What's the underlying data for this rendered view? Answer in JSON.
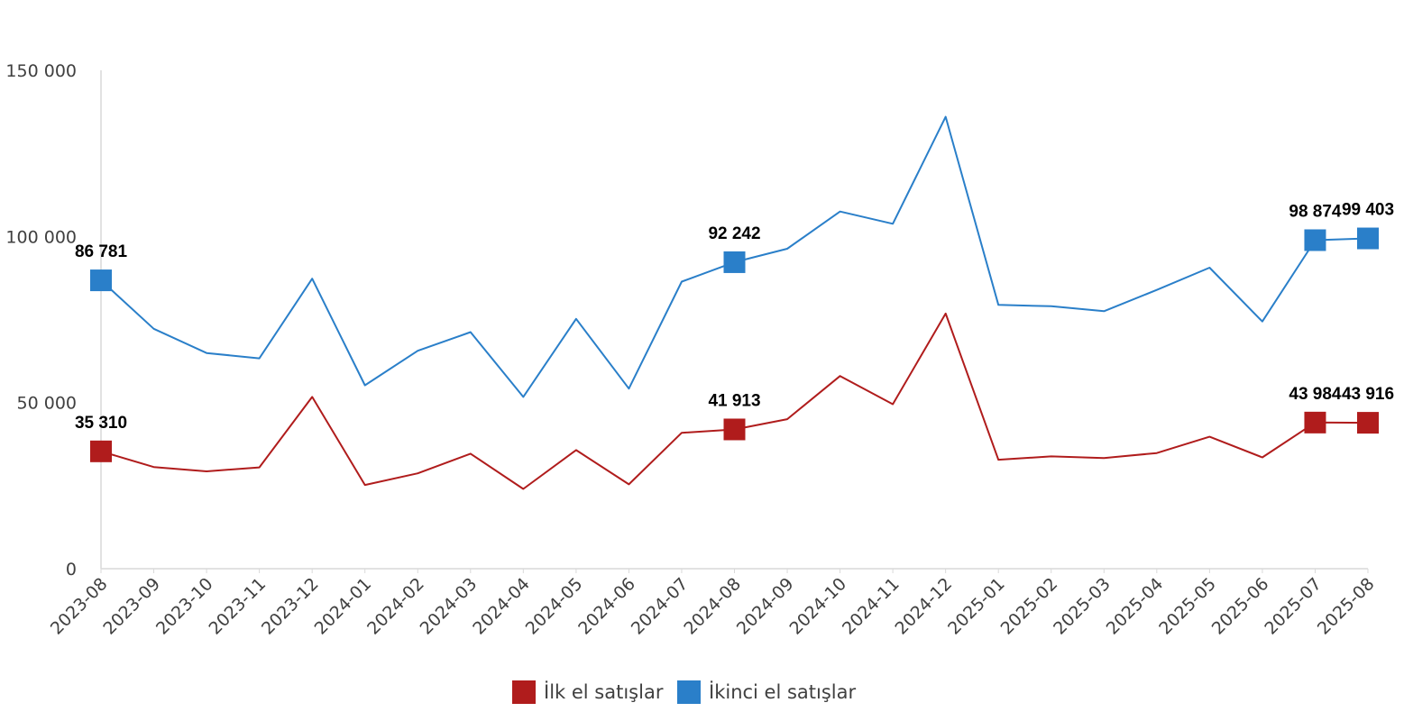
{
  "chart_data": {
    "type": "line",
    "title": "",
    "xlabel": "",
    "ylabel": "",
    "ylim": [
      0,
      150000
    ],
    "yticks": [
      0,
      50000,
      100000,
      150000
    ],
    "ytick_labels": [
      "0",
      "50 000",
      "100 000",
      "150 000"
    ],
    "grid": false,
    "legend_position": "bottom-center",
    "categories": [
      "2023-08",
      "2023-09",
      "2023-10",
      "2023-11",
      "2023-12",
      "2024-01",
      "2024-02",
      "2024-03",
      "2024-04",
      "2024-05",
      "2024-06",
      "2024-07",
      "2024-08",
      "2024-09",
      "2024-10",
      "2024-11",
      "2024-12",
      "2025-01",
      "2025-02",
      "2025-03",
      "2025-04",
      "2025-05",
      "2025-06",
      "2025-07",
      "2025-08"
    ],
    "series": [
      {
        "name": "İlk el satışlar",
        "color": "#b01c1c",
        "values": [
          35310,
          30600,
          29300,
          30500,
          51700,
          25200,
          28700,
          34600,
          24000,
          35700,
          25400,
          40900,
          41913,
          45000,
          58000,
          49500,
          76800,
          32800,
          33800,
          33300,
          34800,
          39700,
          33500,
          43984,
          43916
        ],
        "markers": [
          {
            "index": 0,
            "label": "35 310"
          },
          {
            "index": 12,
            "label": "41 913"
          },
          {
            "index": 23,
            "label": "43 984"
          },
          {
            "index": 24,
            "label": "43 916"
          }
        ]
      },
      {
        "name": "İkinci el satışlar",
        "color": "#2a7fc9",
        "values": [
          86781,
          72200,
          64900,
          63300,
          87300,
          55200,
          65600,
          71200,
          51700,
          75200,
          54200,
          86400,
          92242,
          96300,
          107500,
          103800,
          136000,
          79400,
          79000,
          77500,
          83900,
          90600,
          74400,
          98874,
          99403
        ],
        "markers": [
          {
            "index": 0,
            "label": "86 781"
          },
          {
            "index": 12,
            "label": "92 242"
          },
          {
            "index": 23,
            "label": "98 874"
          },
          {
            "index": 24,
            "label": "99 403"
          }
        ]
      }
    ]
  }
}
